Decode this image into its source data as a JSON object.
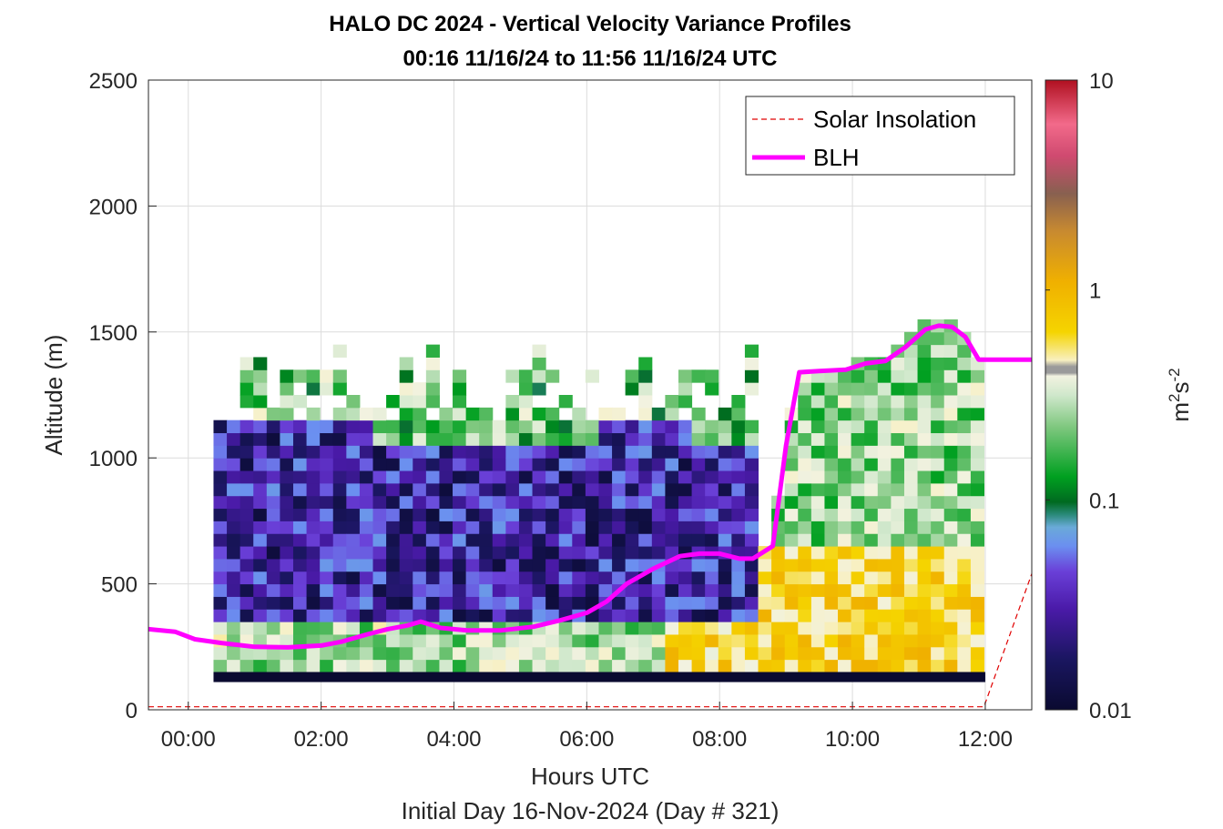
{
  "chart_data": {
    "type": "heatmap",
    "title": "HALO DC 2024 - Vertical Velocity Variance Profiles",
    "subtitle": "00:16 11/16/24 to 11:56 11/16/24  UTC",
    "xlabel": "Hours UTC",
    "xlabel2": "Initial Day 16-Nov-2024 (Day # 321)",
    "ylabel": "Altitude (m)",
    "colorbar_label_base": "m",
    "colorbar_label_exp1": "2",
    "colorbar_label_mid": "s",
    "colorbar_label_exp2": "-2",
    "xlim": [
      -0.6,
      12.7
    ],
    "ylim": [
      0,
      2500
    ],
    "xticks": [
      0,
      2,
      4,
      6,
      8,
      10,
      12
    ],
    "xtick_labels": [
      "00:00",
      "02:00",
      "04:00",
      "06:00",
      "08:00",
      "10:00",
      "12:00"
    ],
    "yticks": [
      0,
      500,
      1000,
      1500,
      2000,
      2500
    ],
    "ytick_labels": [
      "0",
      "500",
      "1000",
      "1500",
      "2000",
      "2500"
    ],
    "color_scale": "log",
    "clim": [
      0.01,
      10
    ],
    "colorbar_ticks": [
      0.01,
      0.1,
      1,
      10
    ],
    "colorbar_tick_labels": [
      "0.01",
      "0.1",
      "1",
      "10"
    ],
    "grid": true,
    "legend_position": "top-right",
    "legend": [
      "Solar Insolation",
      "BLH"
    ],
    "series": [
      {
        "name": "BLH",
        "color": "#ff00ff",
        "x": [
          -0.6,
          -0.2,
          0.1,
          0.5,
          1.0,
          1.5,
          2.0,
          2.3,
          2.7,
          3.0,
          3.3,
          3.5,
          3.8,
          4.2,
          4.7,
          5.2,
          5.6,
          6.0,
          6.3,
          6.6,
          7.0,
          7.4,
          7.7,
          8.0,
          8.3,
          8.5,
          8.8,
          9.0,
          9.2,
          9.5,
          9.9,
          10.2,
          10.5,
          10.8,
          11.1,
          11.3,
          11.5,
          11.7,
          11.9,
          12.2,
          12.7
        ],
        "y": [
          320,
          310,
          280,
          265,
          250,
          248,
          255,
          270,
          300,
          320,
          335,
          350,
          325,
          315,
          315,
          330,
          355,
          385,
          430,
          500,
          560,
          610,
          620,
          620,
          600,
          600,
          650,
          1050,
          1340,
          1345,
          1350,
          1375,
          1385,
          1440,
          1510,
          1525,
          1520,
          1480,
          1390,
          1390,
          1390
        ]
      },
      {
        "name": "Solar Insolation",
        "color": "#e00000",
        "x": [
          -0.6,
          11.98,
          12.7
        ],
        "y": [
          12,
          12,
          540
        ]
      }
    ],
    "heatmap": {
      "x_start": 0.38,
      "x_step": 0.2,
      "y_step": 50,
      "ground_y": [
        110,
        150
      ],
      "ground_x_end": 12.0,
      "notes": "cells show variance; colors encode log10 value"
    }
  }
}
